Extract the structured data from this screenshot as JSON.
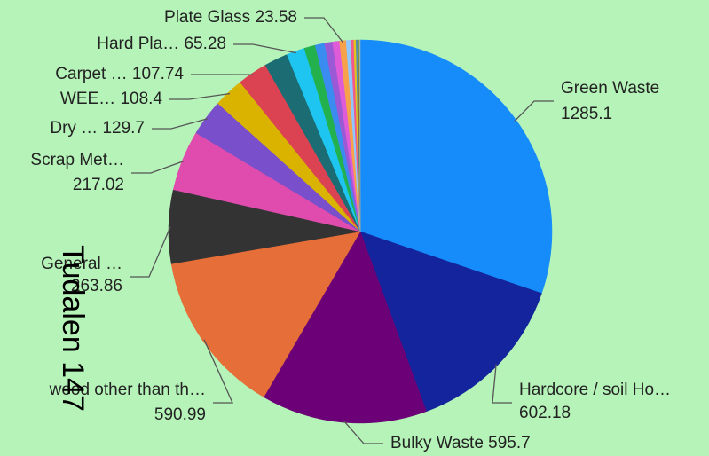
{
  "chart_data": {
    "type": "pie",
    "title": "Tudalen 147",
    "categories": [
      "Green Waste",
      "Hardcore / soil Ho…",
      "Bulky Waste",
      "wood other than th…",
      "General …",
      "Scrap Met…",
      "Dry …",
      "WEE…",
      "Carpet …",
      null,
      "Hard Pla…",
      null,
      null,
      null,
      null,
      "Plate Glass",
      null,
      null,
      null,
      null,
      null,
      null,
      null
    ],
    "values": [
      1285.1,
      602.18,
      595.7,
      590.99,
      263.86,
      217.02,
      129.7,
      108.4,
      107.74,
      85,
      65.28,
      40,
      34,
      28,
      25,
      23.58,
      16,
      11,
      8,
      6,
      4,
      3,
      2
    ],
    "colors": [
      "#168cfa",
      "#13249c",
      "#6b0077",
      "#e66e38",
      "#333333",
      "#df4cad",
      "#7a4fcb",
      "#d9b300",
      "#db4352",
      "#1c6c73",
      "#1ec5f0",
      "#22b14c",
      "#3b8cf0",
      "#9b59d6",
      "#e05bd8",
      "#f7a14a",
      "#8fc8ff",
      "#f05a8c",
      "#e2c21c",
      "#4d8fb5",
      "#a0522d",
      "#6ab04c",
      "#b0b0b0"
    ]
  }
}
